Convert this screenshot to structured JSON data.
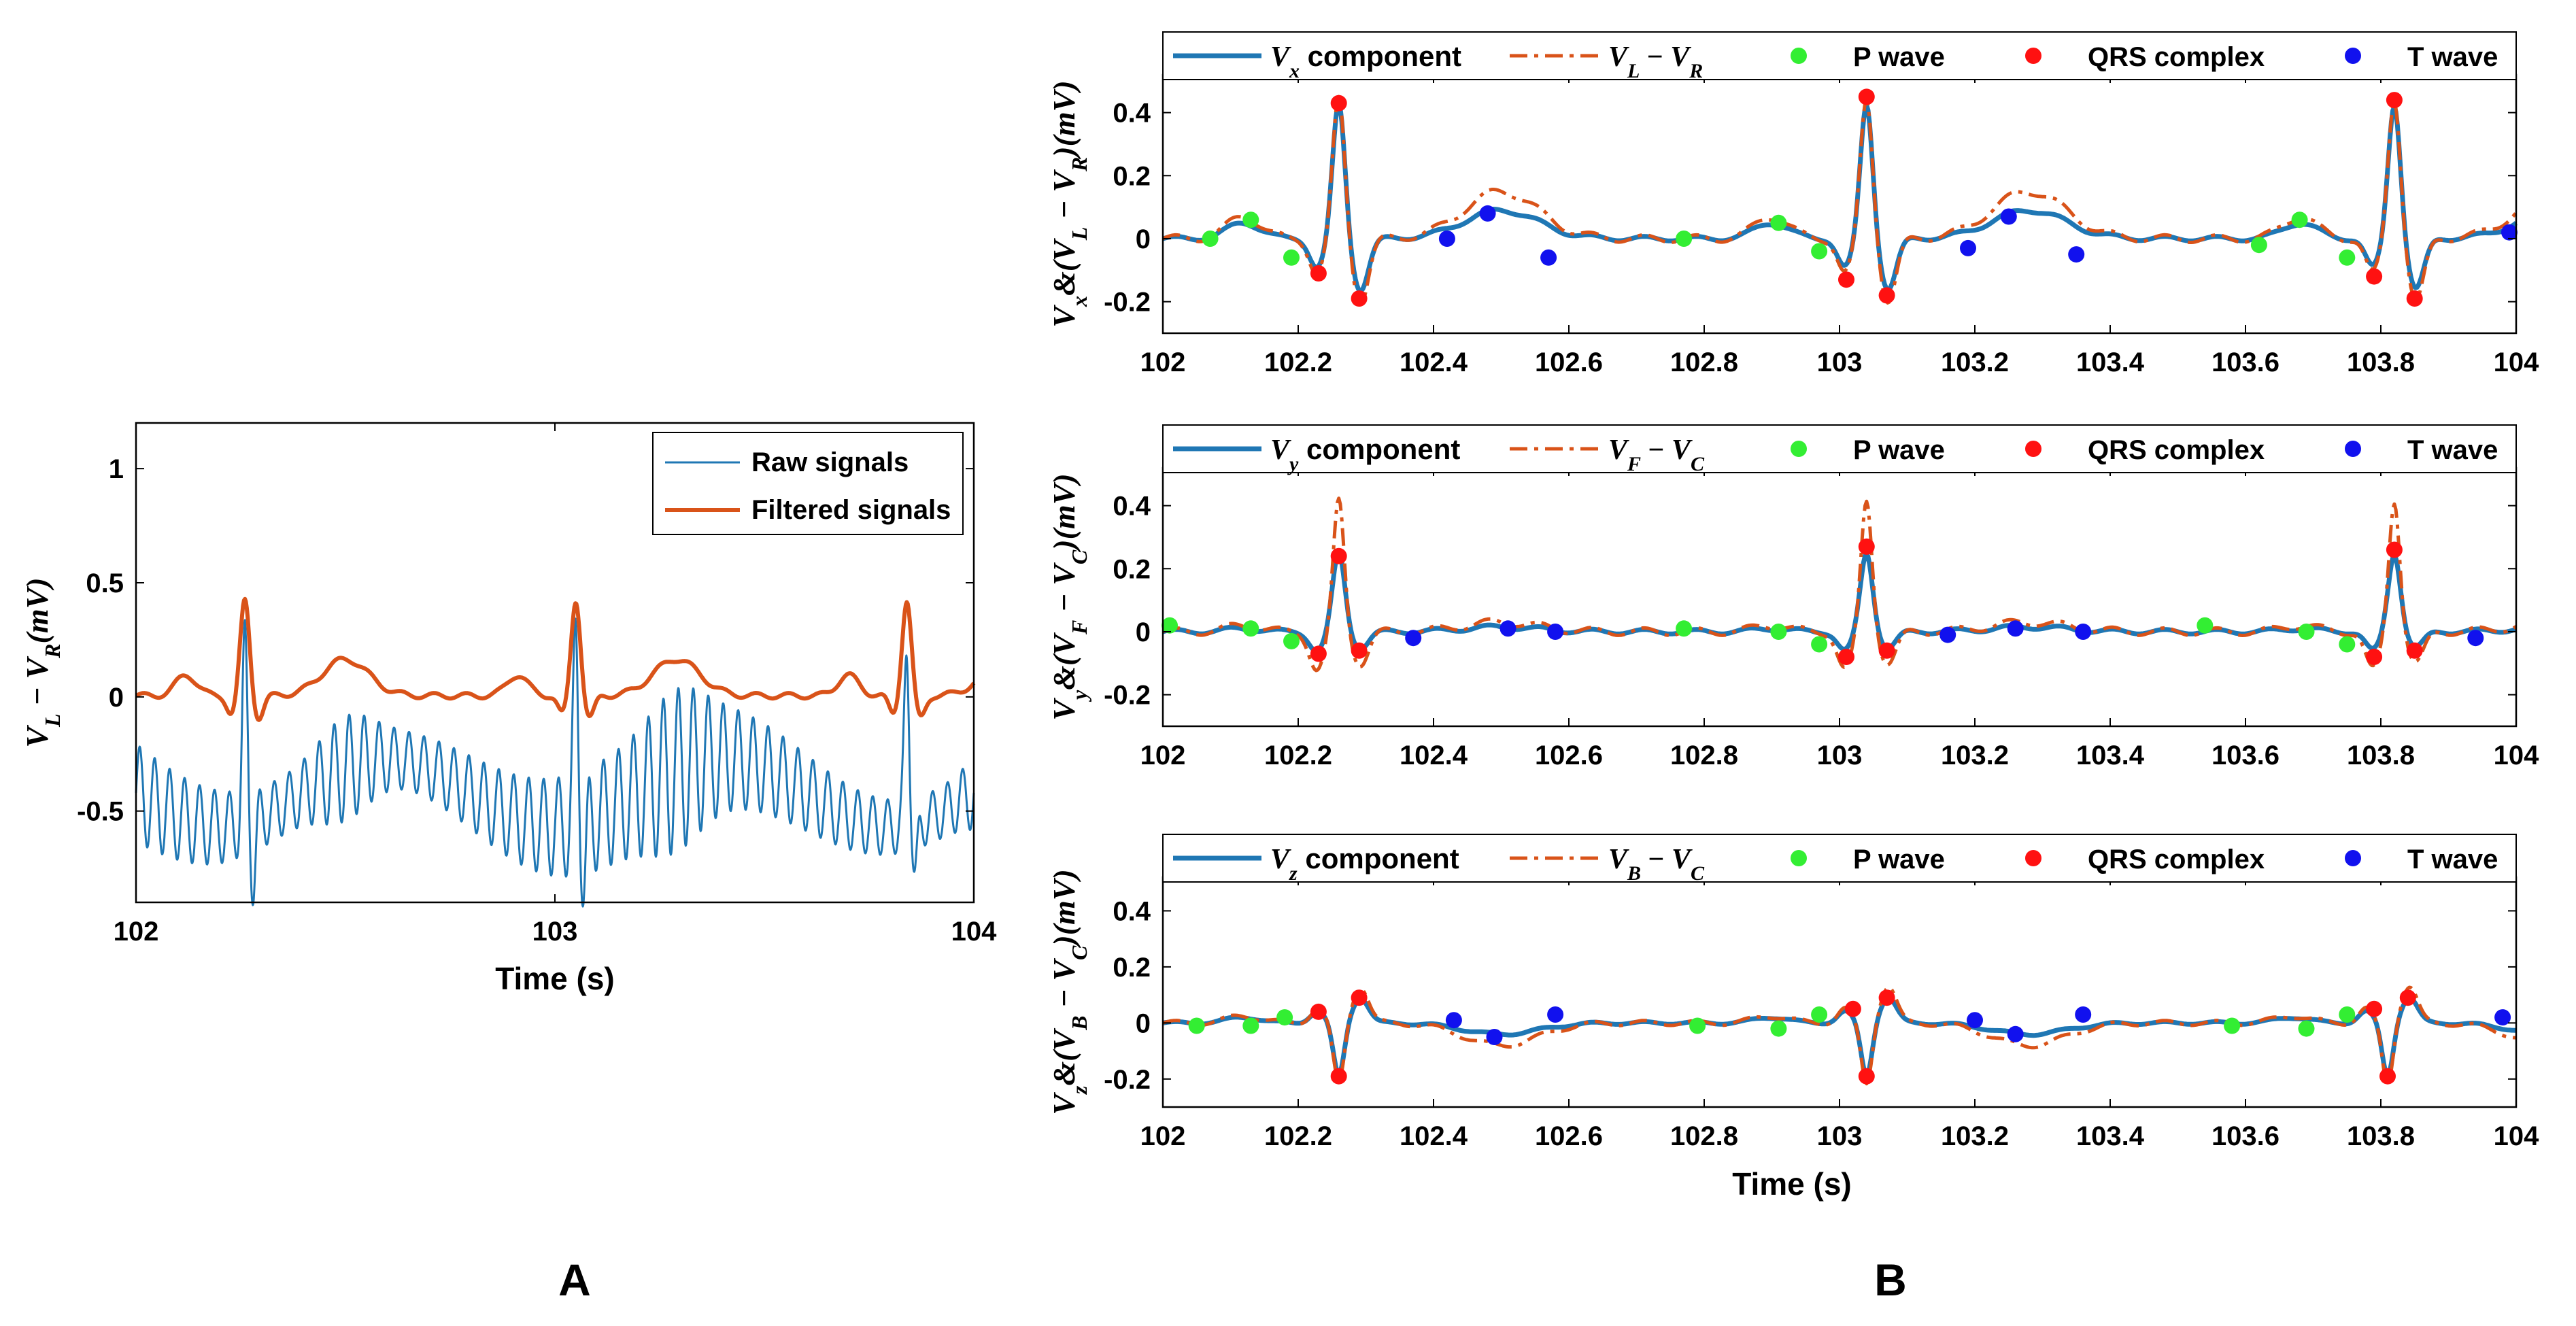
{
  "colors": {
    "blue": "#1f77b4",
    "orange": "#d95319",
    "pwave": "#33ee33",
    "qrs": "#ff1111",
    "twave": "#1111ee",
    "axis": "#000000",
    "background": "#ffffff"
  },
  "panel_labels": {
    "a": "A",
    "b": "B"
  },
  "chart_data": [
    {
      "id": "A",
      "type": "line",
      "xlabel": "Time (s)",
      "ylabel": "V_L − V_R(mV)",
      "xlim": [
        102,
        104
      ],
      "ylim": [
        -0.9,
        1.2
      ],
      "xticks": [
        102,
        103,
        104
      ],
      "xtick_labels": [
        "102",
        "103",
        "104"
      ],
      "yticks": [
        -0.5,
        0,
        0.5,
        1
      ],
      "ytick_labels": [
        "-0.5",
        "0",
        "0.5",
        "1"
      ],
      "legend": [
        "Raw signals",
        "Filtered signals"
      ],
      "legend_position": "top-right",
      "beat_times": [
        102.26,
        103.05,
        103.84
      ],
      "series": [
        {
          "name": "Raw signals",
          "color": "blue",
          "baseline_offset": -0.42,
          "oscillation_amplitude": 0.22,
          "oscillation_frequency_hz": 28
        },
        {
          "name": "Filtered signals",
          "color": "orange",
          "r_peak": 0.42,
          "t_peak": 0.16
        }
      ]
    },
    {
      "id": "B1",
      "type": "line",
      "ylabel": "V_x&(V_L − V_R)(mV)",
      "xlim": [
        102,
        104
      ],
      "ylim": [
        -0.3,
        0.52
      ],
      "xticks": [
        102,
        102.2,
        102.4,
        102.6,
        102.8,
        103,
        103.2,
        103.4,
        103.6,
        103.8,
        104
      ],
      "xtick_labels": [
        "102",
        "102.2",
        "102.4",
        "102.6",
        "102.8",
        "103",
        "103.2",
        "103.4",
        "103.6",
        "103.8",
        "104"
      ],
      "yticks": [
        -0.2,
        0,
        0.2,
        0.4
      ],
      "ytick_labels": [
        "-0.2",
        "0",
        "0.2",
        "0.4"
      ],
      "legend": [
        {
          "label": "V_x component",
          "sym": "V",
          "sub": "x",
          "rest": " component"
        },
        {
          "label": "V_L − V_R",
          "sym": "V",
          "sub": "L",
          "rest": " − ",
          "sym2": "V",
          "sub2": "R"
        },
        {
          "label": "P wave"
        },
        {
          "label": "QRS complex"
        },
        {
          "label": "T wave"
        }
      ],
      "series": [
        {
          "name": "V_x component",
          "color": "blue",
          "r": 0.43
        },
        {
          "name": "V_L − V_R",
          "color": "orange",
          "r": 0.45
        }
      ],
      "p_wave": [
        [
          102.07,
          0.0
        ],
        [
          102.13,
          0.06
        ],
        [
          102.19,
          -0.06
        ],
        [
          102.77,
          0.0
        ],
        [
          102.91,
          0.05
        ],
        [
          102.97,
          -0.04
        ],
        [
          103.62,
          -0.02
        ],
        [
          103.68,
          0.06
        ],
        [
          103.75,
          -0.06
        ]
      ],
      "qrs_complex": [
        [
          102.23,
          -0.11
        ],
        [
          102.26,
          0.43
        ],
        [
          102.29,
          -0.19
        ],
        [
          103.01,
          -0.13
        ],
        [
          103.04,
          0.45
        ],
        [
          103.07,
          -0.18
        ],
        [
          103.79,
          -0.12
        ],
        [
          103.82,
          0.44
        ],
        [
          103.85,
          -0.19
        ]
      ],
      "t_wave": [
        [
          102.42,
          0.0
        ],
        [
          102.48,
          0.08
        ],
        [
          102.57,
          -0.06
        ],
        [
          103.19,
          -0.03
        ],
        [
          103.25,
          0.07
        ],
        [
          103.35,
          -0.05
        ],
        [
          103.99,
          0.02
        ]
      ]
    },
    {
      "id": "B2",
      "type": "line",
      "ylabel": "V_y&(V_F − V_C)(mV)",
      "xlim": [
        102,
        104
      ],
      "ylim": [
        -0.3,
        0.52
      ],
      "xticks": [
        102,
        102.2,
        102.4,
        102.6,
        102.8,
        103,
        103.2,
        103.4,
        103.6,
        103.8,
        104
      ],
      "xtick_labels": [
        "102",
        "102.2",
        "102.4",
        "102.6",
        "102.8",
        "103",
        "103.2",
        "103.4",
        "103.6",
        "103.8",
        "104"
      ],
      "yticks": [
        -0.2,
        0,
        0.2,
        0.4
      ],
      "ytick_labels": [
        "-0.2",
        "0",
        "0.2",
        "0.4"
      ],
      "legend": [
        {
          "label": "V_y component",
          "sym": "V",
          "sub": "y",
          "rest": " component"
        },
        {
          "label": "V_F − V_C",
          "sym": "V",
          "sub": "F",
          "rest": " − ",
          "sym2": "V",
          "sub2": "C"
        },
        {
          "label": "P wave"
        },
        {
          "label": "QRS complex"
        },
        {
          "label": "T wave"
        }
      ],
      "series": [
        {
          "name": "V_y component",
          "color": "blue",
          "r": 0.25
        },
        {
          "name": "V_F − V_C",
          "color": "orange",
          "r": 0.42
        }
      ],
      "p_wave": [
        [
          102.01,
          0.02
        ],
        [
          102.13,
          0.01
        ],
        [
          102.19,
          -0.03
        ],
        [
          102.77,
          0.01
        ],
        [
          102.91,
          0.0
        ],
        [
          102.97,
          -0.04
        ],
        [
          103.54,
          0.02
        ],
        [
          103.69,
          0.0
        ],
        [
          103.75,
          -0.04
        ]
      ],
      "qrs_complex": [
        [
          102.23,
          -0.07
        ],
        [
          102.26,
          0.24
        ],
        [
          102.29,
          -0.06
        ],
        [
          103.01,
          -0.08
        ],
        [
          103.04,
          0.27
        ],
        [
          103.07,
          -0.06
        ],
        [
          103.79,
          -0.08
        ],
        [
          103.82,
          0.26
        ],
        [
          103.85,
          -0.06
        ]
      ],
      "t_wave": [
        [
          102.37,
          -0.02
        ],
        [
          102.51,
          0.01
        ],
        [
          102.58,
          0.0
        ],
        [
          103.16,
          -0.01
        ],
        [
          103.26,
          0.01
        ],
        [
          103.36,
          0.0
        ],
        [
          103.94,
          -0.02
        ]
      ]
    },
    {
      "id": "B3",
      "type": "line",
      "xlabel": "Time (s)",
      "ylabel": "V_z&(V_B − V_C)(mV)",
      "xlim": [
        102,
        104
      ],
      "ylim": [
        -0.3,
        0.52
      ],
      "xticks": [
        102,
        102.2,
        102.4,
        102.6,
        102.8,
        103,
        103.2,
        103.4,
        103.6,
        103.8,
        104
      ],
      "xtick_labels": [
        "102",
        "102.2",
        "102.4",
        "102.6",
        "102.8",
        "103",
        "103.2",
        "103.4",
        "103.6",
        "103.8",
        "104"
      ],
      "yticks": [
        -0.2,
        0,
        0.2,
        0.4
      ],
      "ytick_labels": [
        "-0.2",
        "0",
        "0.2",
        "0.4"
      ],
      "legend": [
        {
          "label": "V_z component",
          "sym": "V",
          "sub": "z",
          "rest": " component"
        },
        {
          "label": "V_B − V_C",
          "sym": "V",
          "sub": "B",
          "rest": " − ",
          "sym2": "V",
          "sub2": "C"
        },
        {
          "label": "P wave"
        },
        {
          "label": "QRS complex"
        },
        {
          "label": "T wave"
        }
      ],
      "series": [
        {
          "name": "V_z component",
          "color": "blue",
          "r": -0.19
        },
        {
          "name": "V_B − V_C",
          "color": "orange",
          "r": -0.22
        }
      ],
      "p_wave": [
        [
          102.05,
          -0.01
        ],
        [
          102.13,
          -0.01
        ],
        [
          102.18,
          0.02
        ],
        [
          102.79,
          -0.01
        ],
        [
          102.91,
          -0.02
        ],
        [
          102.97,
          0.03
        ],
        [
          103.58,
          -0.01
        ],
        [
          103.69,
          -0.02
        ],
        [
          103.75,
          0.03
        ]
      ],
      "qrs_complex": [
        [
          102.23,
          0.04
        ],
        [
          102.26,
          -0.19
        ],
        [
          102.29,
          0.09
        ],
        [
          103.02,
          0.05
        ],
        [
          103.04,
          -0.19
        ],
        [
          103.07,
          0.09
        ],
        [
          103.79,
          0.05
        ],
        [
          103.81,
          -0.19
        ],
        [
          103.84,
          0.09
        ]
      ],
      "t_wave": [
        [
          102.43,
          0.01
        ],
        [
          102.49,
          -0.05
        ],
        [
          102.58,
          0.03
        ],
        [
          103.2,
          0.01
        ],
        [
          103.26,
          -0.04
        ],
        [
          103.36,
          0.03
        ],
        [
          103.98,
          0.02
        ]
      ]
    }
  ]
}
